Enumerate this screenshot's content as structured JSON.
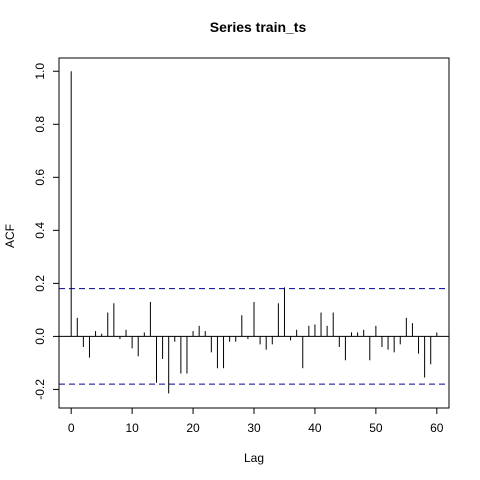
{
  "chart_data": {
    "type": "bar",
    "title": "Series  train_ts",
    "xlabel": "Lag",
    "ylabel": "ACF",
    "xlim": [
      -2,
      62
    ],
    "ylim": [
      -0.27,
      1.05
    ],
    "xticks": [
      "0",
      "10",
      "20",
      "30",
      "40",
      "50",
      "60"
    ],
    "xtick_values": [
      0,
      10,
      20,
      30,
      40,
      50,
      60
    ],
    "yticks": [
      "-0.2",
      "0.0",
      "0.2",
      "0.4",
      "0.6",
      "0.8",
      "1.0"
    ],
    "ytick_values": [
      -0.2,
      0.0,
      0.2,
      0.4,
      0.6,
      0.8,
      1.0
    ],
    "confidence_bound": 0.18,
    "zero_line": 0.0,
    "colors": {
      "bars": "#000000",
      "bounds": "#00008b",
      "axis": "#000000"
    },
    "series": [
      {
        "lags": [
          0,
          1,
          2,
          3,
          4,
          5,
          6,
          7,
          8,
          9,
          10,
          11,
          12,
          13,
          14,
          15,
          16,
          17,
          18,
          19,
          20,
          21,
          22,
          23,
          24,
          25,
          26,
          27,
          28,
          29,
          30,
          31,
          32,
          33,
          34,
          35,
          36,
          37,
          38,
          39,
          40,
          41,
          42,
          43,
          44,
          45,
          46,
          47,
          48,
          49,
          50,
          51,
          52,
          53,
          54,
          55,
          56,
          57,
          58,
          59,
          60
        ],
        "values": [
          1.0,
          0.07,
          -0.04,
          -0.08,
          0.02,
          0.01,
          0.09,
          0.125,
          -0.01,
          0.025,
          -0.045,
          -0.075,
          0.015,
          0.13,
          -0.175,
          -0.085,
          -0.215,
          -0.02,
          -0.14,
          -0.14,
          0.02,
          0.04,
          0.02,
          -0.06,
          -0.12,
          -0.12,
          -0.02,
          -0.02,
          0.08,
          -0.01,
          0.13,
          -0.03,
          -0.05,
          -0.03,
          0.125,
          0.185,
          -0.015,
          0.025,
          -0.12,
          0.04,
          0.045,
          0.09,
          0.04,
          0.09,
          -0.04,
          -0.09,
          0.015,
          0.015,
          0.025,
          -0.09,
          0.04,
          -0.04,
          -0.05,
          -0.06,
          -0.03,
          0.07,
          0.05,
          -0.065,
          -0.155,
          -0.105,
          0.015
        ]
      }
    ]
  }
}
